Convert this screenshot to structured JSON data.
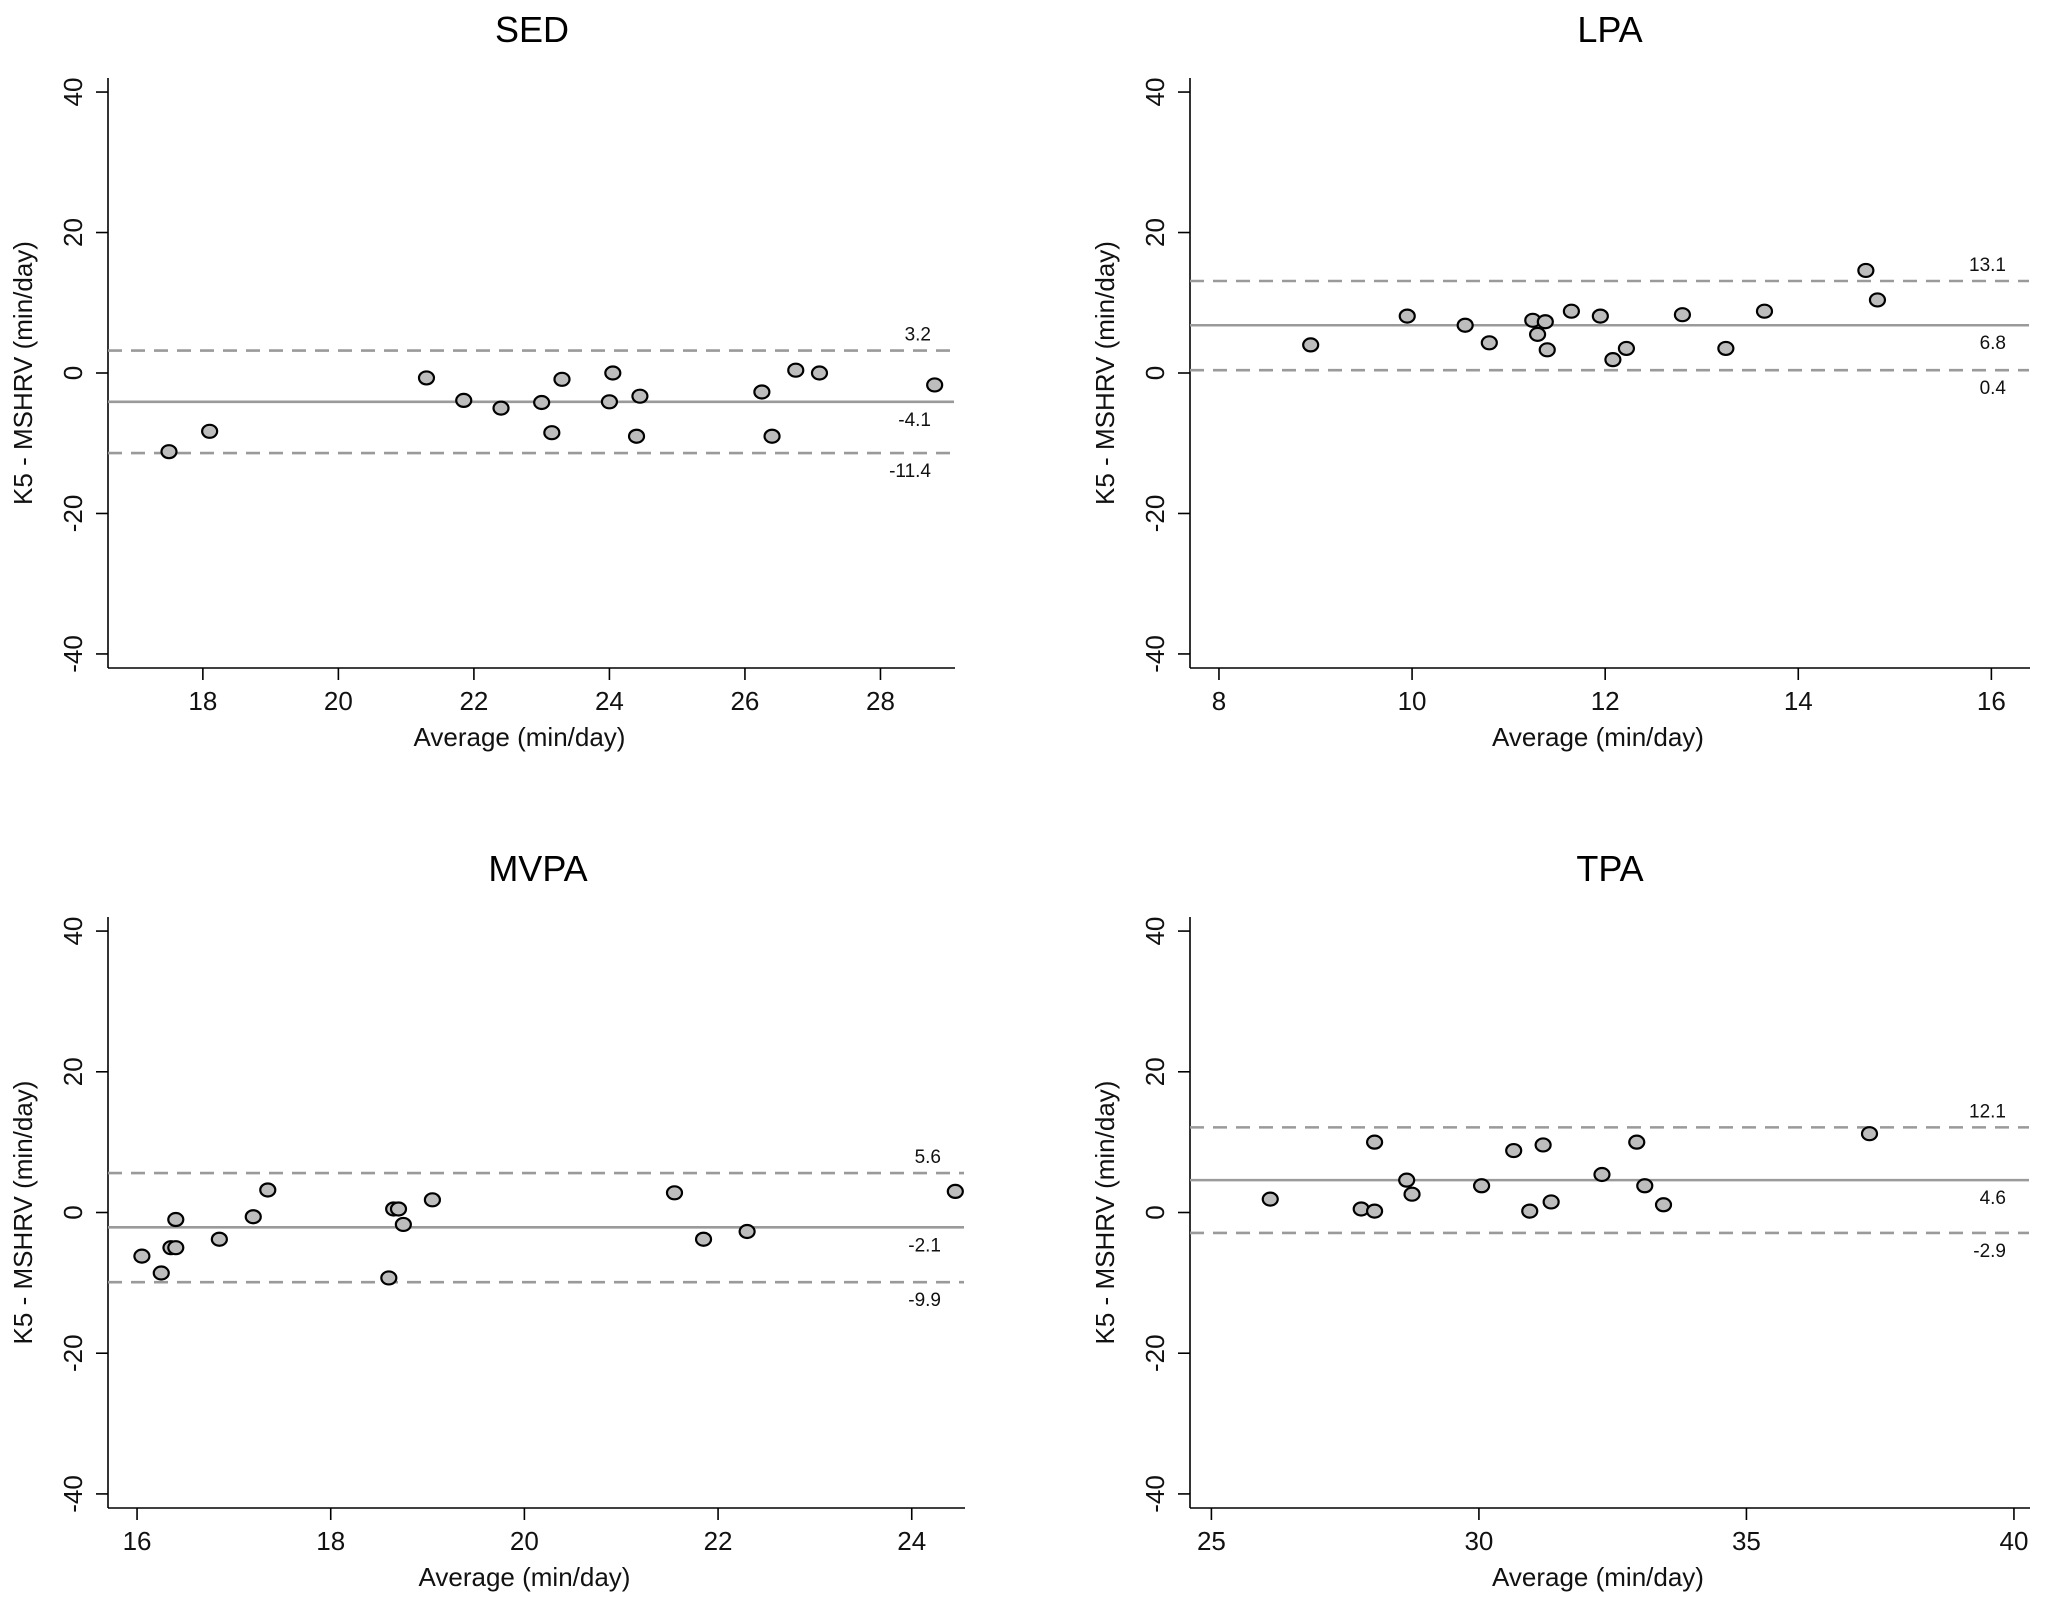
{
  "style": {
    "line_color": "#9a9a9a",
    "point_fill": "#bdbdbd",
    "point_edge": "#000000",
    "axis_color": "#000000"
  },
  "chart_data": [
    {
      "type": "scatter",
      "id": "sed",
      "title": "SED",
      "xlabel": "Average (min/day)",
      "ylabel": "K5 - MSHRV (min/day)",
      "xlim": [
        16.6,
        29.1
      ],
      "ylim": [
        -42,
        42
      ],
      "xticks": [
        18,
        20,
        22,
        24,
        26,
        28
      ],
      "yticks": [
        40,
        20,
        0,
        -20,
        -40
      ],
      "mean": -4.1,
      "upper_loa": 3.2,
      "lower_loa": -11.4,
      "mean_label": "-4.1",
      "upper_label": "3.2",
      "lower_label": "-11.4",
      "points": [
        [
          17.5,
          -11.2
        ],
        [
          18.1,
          -8.3
        ],
        [
          21.3,
          -0.7
        ],
        [
          21.85,
          -3.9
        ],
        [
          22.4,
          -5.0
        ],
        [
          23.0,
          -4.2
        ],
        [
          23.15,
          -8.5
        ],
        [
          23.3,
          -0.9
        ],
        [
          24.0,
          -4.1
        ],
        [
          24.05,
          0.0
        ],
        [
          24.4,
          -9.0
        ],
        [
          24.45,
          -3.3
        ],
        [
          26.25,
          -2.7
        ],
        [
          26.4,
          -9.0
        ],
        [
          26.75,
          0.4
        ],
        [
          27.1,
          0.0
        ],
        [
          28.8,
          -1.7
        ]
      ]
    },
    {
      "type": "scatter",
      "id": "lpa",
      "title": "LPA",
      "xlabel": "Average (min/day)",
      "ylabel": "K5 - MSHRV (min/day)",
      "xlim": [
        7.7,
        16.4
      ],
      "ylim": [
        -42,
        42
      ],
      "xticks": [
        8,
        10,
        12,
        14,
        16
      ],
      "yticks": [
        40,
        20,
        0,
        -20,
        -40
      ],
      "mean": 6.8,
      "upper_loa": 13.1,
      "lower_loa": 0.4,
      "mean_label": "6.8",
      "upper_label": "13.1",
      "lower_label": "0.4",
      "points": [
        [
          8.95,
          4.0
        ],
        [
          9.95,
          8.1
        ],
        [
          10.55,
          6.8
        ],
        [
          10.8,
          4.3
        ],
        [
          11.25,
          7.5
        ],
        [
          11.3,
          5.5
        ],
        [
          11.38,
          7.3
        ],
        [
          11.4,
          3.3
        ],
        [
          11.65,
          8.8
        ],
        [
          11.95,
          8.1
        ],
        [
          12.08,
          1.9
        ],
        [
          12.22,
          3.5
        ],
        [
          12.8,
          8.3
        ],
        [
          13.25,
          3.5
        ],
        [
          13.65,
          8.8
        ],
        [
          14.7,
          14.6
        ],
        [
          14.82,
          10.4
        ]
      ]
    },
    {
      "type": "scatter",
      "id": "mvpa",
      "title": "MVPA",
      "xlabel": "Average (min/day)",
      "ylabel": "K5 - MSHRV (min/day)",
      "xlim": [
        15.7,
        24.55
      ],
      "ylim": [
        -42,
        42
      ],
      "xticks": [
        16,
        18,
        20,
        22,
        24
      ],
      "yticks": [
        40,
        20,
        0,
        -20,
        -40
      ],
      "mean": -2.1,
      "upper_loa": 5.6,
      "lower_loa": -9.9,
      "mean_label": "-2.1",
      "upper_label": "5.6",
      "lower_label": "-9.9",
      "points": [
        [
          16.05,
          -6.2
        ],
        [
          16.25,
          -8.6
        ],
        [
          16.35,
          -5.0
        ],
        [
          16.4,
          -5.0
        ],
        [
          16.4,
          -1.0
        ],
        [
          16.85,
          -3.8
        ],
        [
          17.2,
          -0.6
        ],
        [
          17.35,
          3.2
        ],
        [
          18.6,
          -9.3
        ],
        [
          18.65,
          0.5
        ],
        [
          18.7,
          0.5
        ],
        [
          18.75,
          -1.7
        ],
        [
          19.05,
          1.8
        ],
        [
          21.55,
          2.8
        ],
        [
          21.85,
          -3.8
        ],
        [
          22.3,
          -2.7
        ],
        [
          24.45,
          3.0
        ]
      ]
    },
    {
      "type": "scatter",
      "id": "tpa",
      "title": "TPA",
      "xlabel": "Average (min/day)",
      "ylabel": "K5 - MSHRV (min/day)",
      "xlim": [
        24.6,
        40.3
      ],
      "ylim": [
        -42,
        42
      ],
      "xticks": [
        25,
        30,
        35,
        40
      ],
      "yticks": [
        40,
        20,
        0,
        -20,
        -40
      ],
      "mean": 4.6,
      "upper_loa": 12.1,
      "lower_loa": -2.9,
      "mean_label": "4.6",
      "upper_label": "12.1",
      "lower_label": "-2.9",
      "points": [
        [
          26.1,
          1.9
        ],
        [
          27.8,
          0.5
        ],
        [
          28.05,
          0.2
        ],
        [
          28.05,
          10.0
        ],
        [
          28.65,
          4.6
        ],
        [
          28.75,
          2.6
        ],
        [
          30.05,
          3.8
        ],
        [
          30.65,
          8.8
        ],
        [
          30.95,
          0.2
        ],
        [
          31.2,
          9.6
        ],
        [
          31.35,
          1.5
        ],
        [
          32.3,
          5.4
        ],
        [
          32.95,
          10.0
        ],
        [
          33.1,
          3.8
        ],
        [
          33.45,
          1.1
        ],
        [
          37.3,
          11.2
        ]
      ]
    }
  ]
}
